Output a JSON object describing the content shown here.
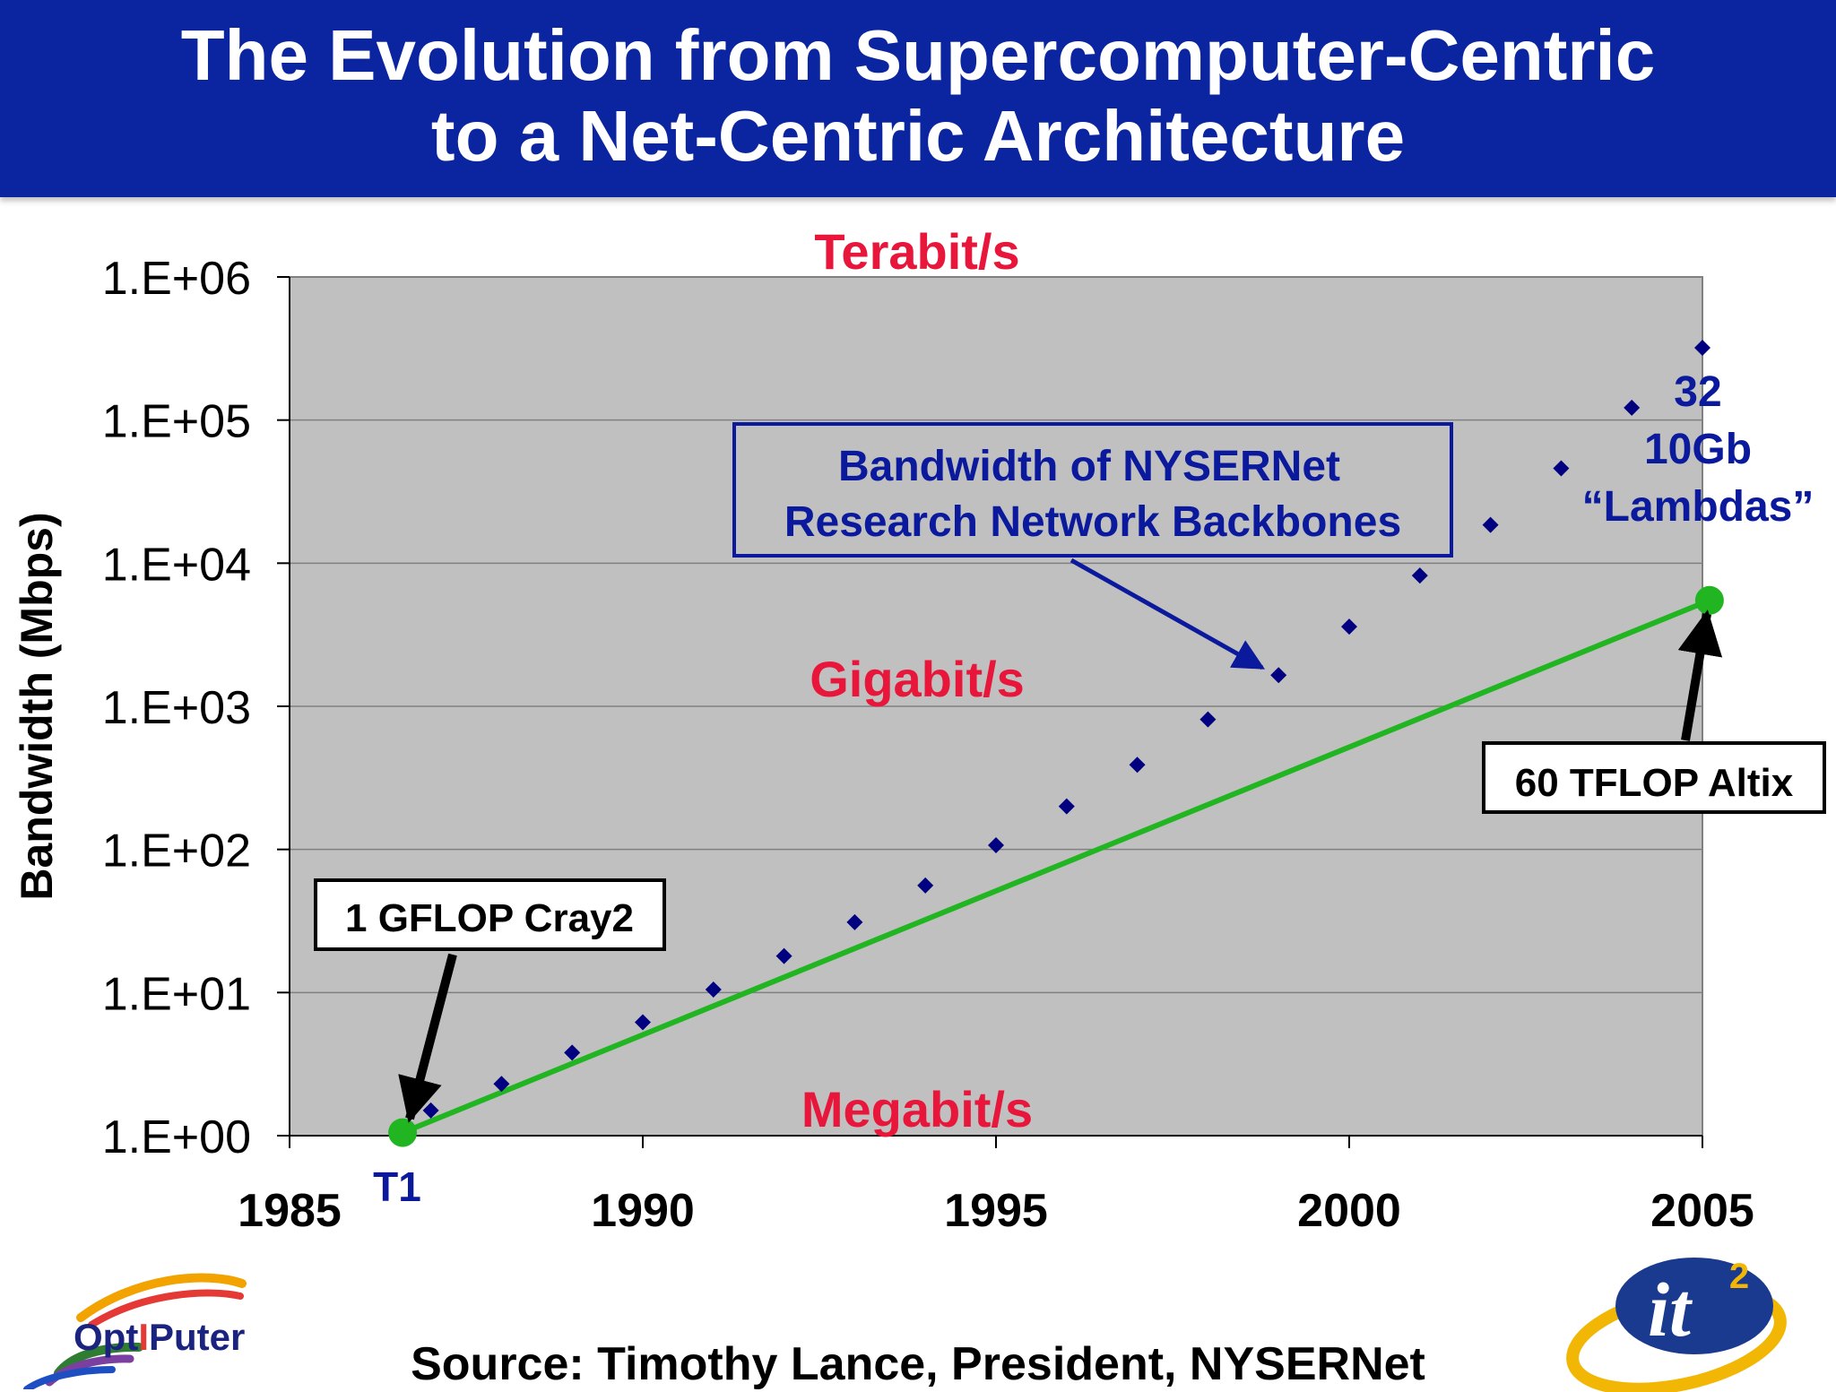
{
  "slide": {
    "title_line_1": "The Evolution from Supercomputer-Centric",
    "title_line_2": "to a Net-Centric Architecture",
    "source": "Source: Timothy Lance, President, NYSERNet",
    "logos": {
      "left": {
        "icon": "optiputer-logo-icon",
        "text_opt": "Opt",
        "text_i": "I",
        "text_puter": "Puter",
        "color_text": "#1a237e",
        "color_i": "#e53935"
      },
      "right": {
        "icon": "it2-logo-icon",
        "text": "it",
        "superscript": "2",
        "color_blue": "#1a3a8f",
        "color_gold": "#f2b705"
      }
    }
  },
  "chart_data": {
    "type": "scatter",
    "ylabel": "Bandwidth (Mbps)",
    "xlabel": "",
    "yscale": "log",
    "xlim": [
      1985,
      2005
    ],
    "ylim": [
      1,
      1000000
    ],
    "x_ticks": [
      "1985",
      "1990",
      "1995",
      "2000",
      "2005"
    ],
    "y_ticks": [
      "1.E+00",
      "1.E+01",
      "1.E+02",
      "1.E+03",
      "1.E+04",
      "1.E+05",
      "1.E+06"
    ],
    "grid": true,
    "plot_background": "#c0c0c0",
    "series": [
      {
        "marker": "diamond",
        "color": "#000080",
        "points": [
          {
            "x": 1987,
            "y": 1.5
          },
          {
            "x": 1988,
            "y": 2.3
          },
          {
            "x": 1989,
            "y": 3.8
          },
          {
            "x": 1990,
            "y": 6.2
          },
          {
            "x": 1991,
            "y": 10.5
          },
          {
            "x": 1992,
            "y": 18
          },
          {
            "x": 1993,
            "y": 31
          },
          {
            "x": 1994,
            "y": 56
          },
          {
            "x": 1995,
            "y": 107
          },
          {
            "x": 1996,
            "y": 200
          },
          {
            "x": 1997,
            "y": 390
          },
          {
            "x": 1998,
            "y": 810
          },
          {
            "x": 1999,
            "y": 1650
          },
          {
            "x": 2000,
            "y": 3600
          },
          {
            "x": 2001,
            "y": 8200
          },
          {
            "x": 2002,
            "y": 18500
          },
          {
            "x": 2003,
            "y": 46000
          },
          {
            "x": 2004,
            "y": 122000
          },
          {
            "x": 2005,
            "y": 320000
          }
        ]
      },
      {
        "marker": "line",
        "color": "#22b522",
        "points": [
          {
            "x": 1986.6,
            "y": 1.05
          },
          {
            "x": 2005.1,
            "y": 5500
          }
        ]
      }
    ],
    "annotations": {
      "terabit": {
        "text": "Terabit/s",
        "color": "#e8163b"
      },
      "gigabit": {
        "text": "Gigabit/s",
        "color": "#e8163b"
      },
      "megabit": {
        "text": "Megabit/s",
        "color": "#e8163b"
      },
      "nysernet_line_1": "Bandwidth of NYSERNet",
      "nysernet_line_2": "Research Network Backbones",
      "lambdas_line_1": "32",
      "lambdas_line_2": "10Gb",
      "lambdas_line_3": "“Lambdas”",
      "cray": "1 GFLOP Cray2",
      "altix": "60 TFLOP Altix",
      "t1": "T1",
      "text_color": "#0b1a9c"
    }
  }
}
